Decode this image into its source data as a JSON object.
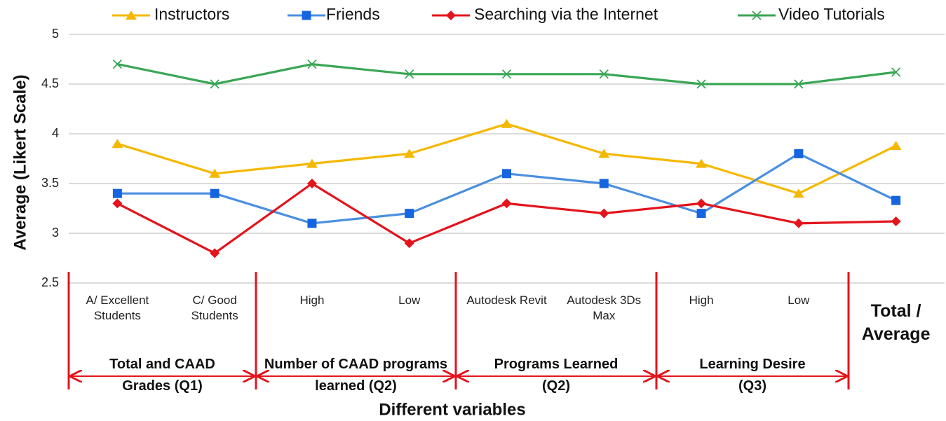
{
  "chart_data": {
    "type": "line",
    "y_label": "Average (Likert Scale)",
    "x_label": "Different variables",
    "categories": [
      "A/ Excellent Students",
      "C/ Good Students",
      "High",
      "Low",
      "Autodesk Revit",
      "Autodesk 3Ds Max",
      "High",
      "Low",
      "Total / Average"
    ],
    "groups": [
      "Total and CAAD Grades (Q1)",
      "Number of CAAD programs learned (Q2)",
      "Programs Learned (Q2)",
      "Learning Desire (Q3)"
    ],
    "series": [
      {
        "name": "Instructors",
        "color": "#f5b800",
        "marker": "triangle",
        "values": [
          3.9,
          3.6,
          3.7,
          3.8,
          4.1,
          3.8,
          3.7,
          3.4,
          3.88
        ]
      },
      {
        "name": "Friends",
        "color": "#4a8fe0",
        "marker_color": "#1565e0",
        "marker": "square",
        "values": [
          3.4,
          3.4,
          3.1,
          3.2,
          3.6,
          3.5,
          3.2,
          3.8,
          3.33
        ]
      },
      {
        "name": "Searching via the Internet",
        "color": "#e4141c",
        "marker": "diamond",
        "values": [
          3.3,
          2.8,
          3.5,
          2.9,
          3.3,
          3.2,
          3.3,
          3.1,
          3.12
        ]
      },
      {
        "name": "Video Tutorials",
        "color": "#3aa655",
        "marker": "x",
        "values": [
          4.7,
          4.5,
          4.7,
          4.6,
          4.6,
          4.6,
          4.5,
          4.5,
          4.62
        ]
      }
    ],
    "ylim": [
      2.5,
      5
    ],
    "yticks": [
      2.5,
      3,
      3.5,
      4,
      4.5,
      5
    ],
    "grid": true,
    "legend": "top"
  }
}
